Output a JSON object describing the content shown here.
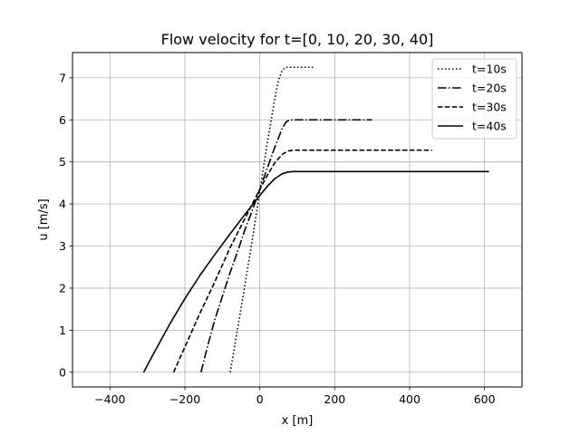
{
  "chart_data": {
    "type": "line",
    "title": "Flow velocity for t=[0, 10, 20, 30, 40]",
    "xlabel": "x [m]",
    "ylabel": "u [m/s]",
    "xlim": [
      -500,
      700
    ],
    "ylim": [
      -0.35,
      7.6
    ],
    "xticks": [
      -400,
      -200,
      0,
      200,
      400,
      600
    ],
    "yticks": [
      0,
      1,
      2,
      3,
      4,
      5,
      6,
      7
    ],
    "grid": true,
    "legend_position": "top-right",
    "series": [
      {
        "name": "t=10s",
        "dash": "dotted",
        "x": [
          -79,
          -60,
          -40,
          -20,
          0,
          20,
          40,
          50,
          60,
          70,
          80,
          100,
          120,
          142
        ],
        "y": [
          0,
          1.0,
          2.05,
          3.15,
          4.3,
          5.45,
          6.5,
          6.95,
          7.18,
          7.25,
          7.25,
          7.25,
          7.25,
          7.25
        ]
      },
      {
        "name": "t=20s",
        "dash": "dashdot",
        "x": [
          -157,
          -140,
          -120,
          -100,
          -80,
          -60,
          -40,
          -20,
          0,
          20,
          40,
          60,
          70,
          80,
          100,
          150,
          200,
          250,
          300
        ],
        "y": [
          0,
          0.6,
          1.25,
          1.8,
          2.35,
          2.85,
          3.38,
          3.85,
          4.35,
          4.85,
          5.35,
          5.8,
          5.95,
          6.0,
          6.0,
          6.0,
          6.0,
          6.0,
          6.0
        ]
      },
      {
        "name": "t=30s",
        "dash": "dashed",
        "x": [
          -230,
          -200,
          -160,
          -120,
          -80,
          -40,
          0,
          20,
          40,
          60,
          75,
          90,
          150,
          250,
          350,
          460
        ],
        "y": [
          0,
          0.6,
          1.4,
          2.15,
          2.95,
          3.65,
          4.35,
          4.68,
          4.98,
          5.18,
          5.26,
          5.28,
          5.28,
          5.28,
          5.28,
          5.28
        ]
      },
      {
        "name": "t=40s",
        "dash": "solid",
        "x": [
          -310,
          -280,
          -240,
          -200,
          -160,
          -120,
          -80,
          -40,
          0,
          20,
          40,
          60,
          75,
          90,
          100,
          200,
          300,
          400,
          500,
          612
        ],
        "y": [
          0,
          0.5,
          1.15,
          1.75,
          2.3,
          2.8,
          3.28,
          3.75,
          4.2,
          4.42,
          4.6,
          4.72,
          4.76,
          4.77,
          4.77,
          4.77,
          4.77,
          4.77,
          4.77,
          4.77
        ]
      }
    ]
  }
}
